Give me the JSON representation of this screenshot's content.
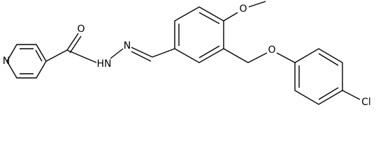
{
  "atoms": [
    {
      "label": "O"
    },
    {
      "label": "N"
    },
    {
      "label": "HN"
    },
    {
      "label": "N"
    },
    {
      "label": "O"
    },
    {
      "label": "O"
    },
    {
      "label": "Cl"
    }
  ]
}
